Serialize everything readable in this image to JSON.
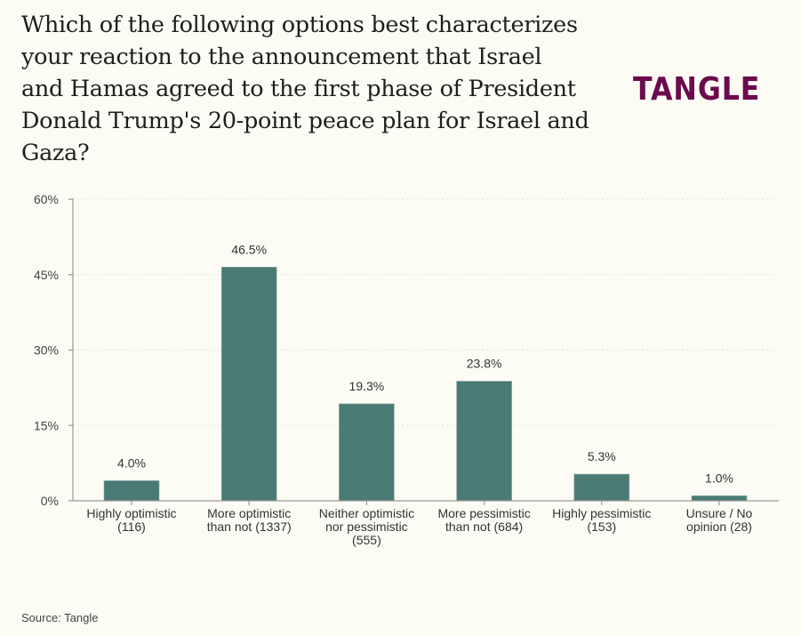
{
  "header": {
    "title": "Which of the following options best characterizes your reaction to the announcement that Israel and Hamas agreed to the first phase of President Donald Trump's 20-point peace plan for Israel and Gaza?",
    "logo": "TANGLE"
  },
  "footer": {
    "source": "Source: Tangle"
  },
  "colors": {
    "bar": "#4a7a74",
    "logo": "#6b0b4d",
    "background": "#fcfbf4",
    "axis": "#999999"
  },
  "chart_data": {
    "type": "bar",
    "title": "Which of the following options best characterizes your reaction to the announcement that Israel and Hamas agreed to the first phase of President Donald Trump's 20-point peace plan for Israel and Gaza?",
    "xlabel": "",
    "ylabel": "",
    "ylim": [
      0,
      60
    ],
    "yticks": [
      0,
      15,
      30,
      45,
      60
    ],
    "ytick_labels": [
      "0%",
      "15%",
      "30%",
      "45%",
      "60%"
    ],
    "grid": true,
    "categories": [
      [
        "Highly optimistic",
        "(116)"
      ],
      [
        "More optimistic",
        "than not (1337)"
      ],
      [
        "Neither optimistic",
        "nor pessimistic",
        "(555)"
      ],
      [
        "More pessimistic",
        "than not (684)"
      ],
      [
        "Highly pessimistic",
        "(153)"
      ],
      [
        "Unsure / No",
        "opinion (28)"
      ]
    ],
    "values": [
      4.0,
      46.5,
      19.3,
      23.8,
      5.3,
      1.0
    ],
    "data_labels": [
      "4.0%",
      "46.5%",
      "19.3%",
      "23.8%",
      "5.3%",
      "1.0%"
    ]
  }
}
